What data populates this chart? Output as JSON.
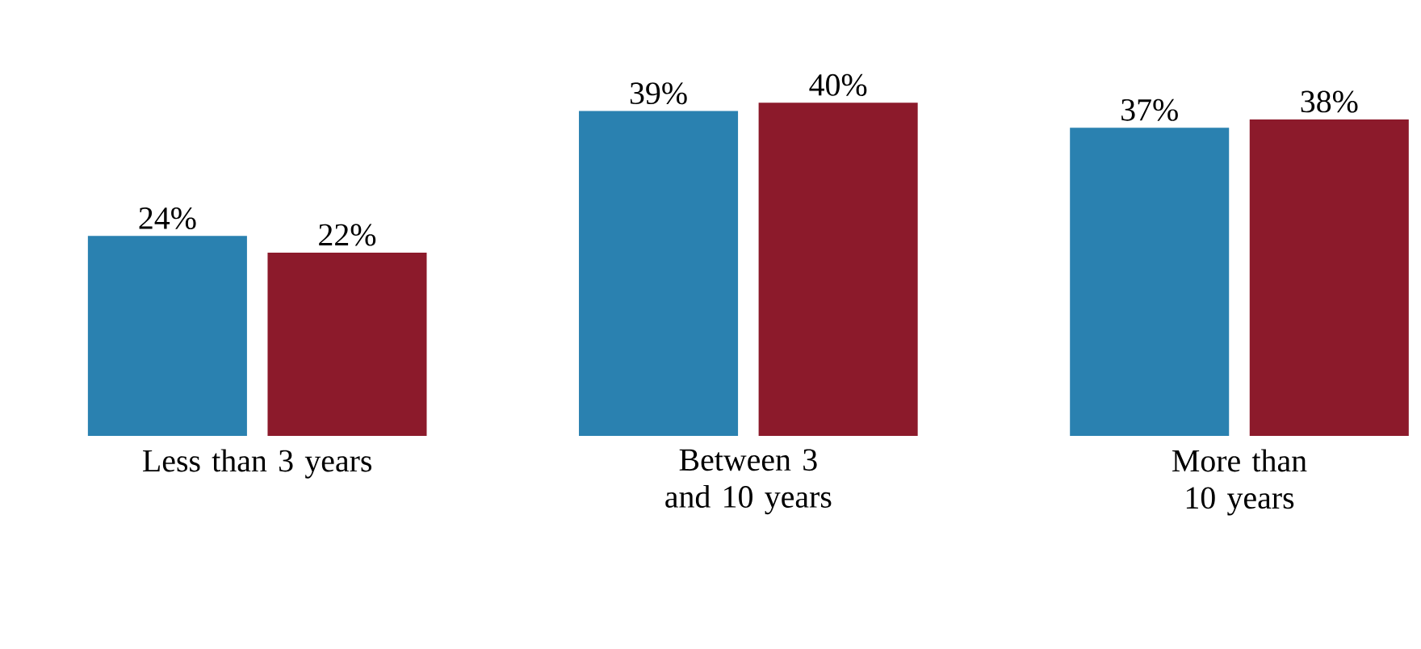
{
  "chart_data": {
    "type": "bar",
    "categories": [
      "Less than 3 years",
      "Between 3 and 10 years",
      "More than 10 years"
    ],
    "series": [
      {
        "color": "#2a81b0",
        "values": [
          24,
          39,
          37
        ],
        "value_labels": [
          "24%",
          "39%",
          "37%"
        ]
      },
      {
        "color": "#8c1a2b",
        "values": [
          22,
          40,
          38
        ],
        "value_labels": [
          "22%",
          "40%",
          "38%"
        ]
      }
    ]
  }
}
